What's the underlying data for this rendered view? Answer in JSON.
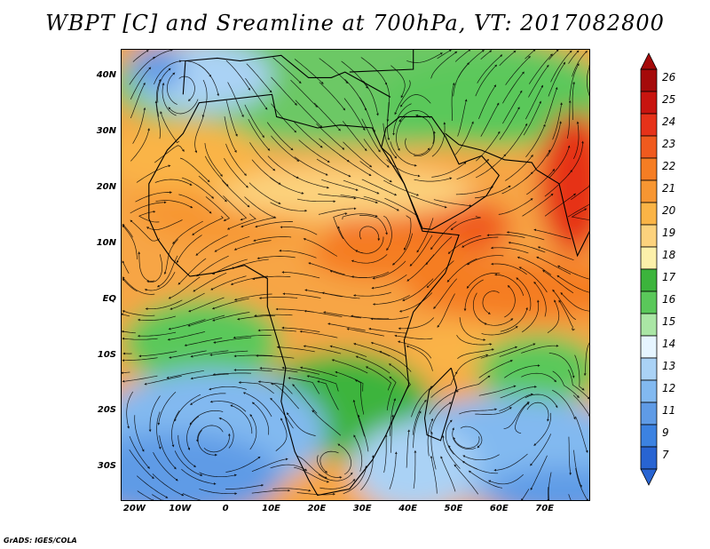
{
  "title": "WBPT [C] and Sreamline at 700hPa, VT: 2017082800",
  "credit": "GrADS: IGES/COLA",
  "map": {
    "lon_range": [
      -23,
      80
    ],
    "lat_range": [
      -36,
      45
    ],
    "lat_ticks": [
      {
        "value": 40,
        "label": "40N"
      },
      {
        "value": 30,
        "label": "30N"
      },
      {
        "value": 20,
        "label": "20N"
      },
      {
        "value": 10,
        "label": "10N"
      },
      {
        "value": 0,
        "label": "EQ"
      },
      {
        "value": -10,
        "label": "10S"
      },
      {
        "value": -20,
        "label": "20S"
      },
      {
        "value": -30,
        "label": "30S"
      }
    ],
    "lon_ticks": [
      {
        "value": -20,
        "label": "20W"
      },
      {
        "value": -10,
        "label": "10W"
      },
      {
        "value": 0,
        "label": "0"
      },
      {
        "value": 10,
        "label": "10E"
      },
      {
        "value": 20,
        "label": "20E"
      },
      {
        "value": 30,
        "label": "30E"
      },
      {
        "value": 40,
        "label": "40E"
      },
      {
        "value": 50,
        "label": "50E"
      },
      {
        "value": 60,
        "label": "60E"
      },
      {
        "value": 70,
        "label": "70E"
      }
    ]
  },
  "colorbar": {
    "labels": [
      "26",
      "25",
      "24",
      "23",
      "22",
      "21",
      "20",
      "19",
      "18",
      "17",
      "16",
      "15",
      "14",
      "13",
      "12",
      "11",
      "9",
      "7"
    ],
    "colors": [
      "#a50a0a",
      "#c8140f",
      "#e63219",
      "#f05a1e",
      "#f57d23",
      "#f79632",
      "#fab446",
      "#fcd27d",
      "#fcf0aa",
      "#3cb43c",
      "#5ac85a",
      "#aae6a5",
      "#e6f5ff",
      "#aad2f5",
      "#82b9f0",
      "#5f9be6",
      "#3c82e1",
      "#2864d2"
    ]
  }
}
